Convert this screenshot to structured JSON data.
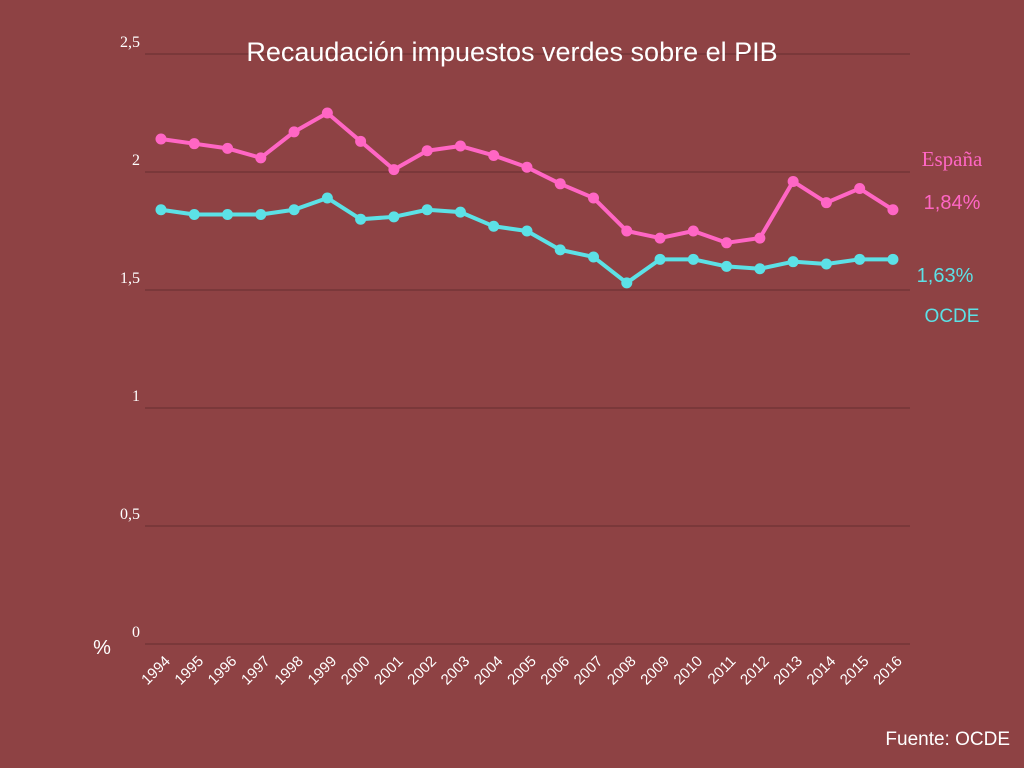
{
  "source": "Fuente: OCDE",
  "chart_data": {
    "type": "line",
    "title": "Recaudación impuestos verdes sobre el PIB",
    "ylabel": "%",
    "xlabel": "",
    "ylim": [
      0,
      2.5
    ],
    "yticks": [
      {
        "value": 0,
        "label": "0"
      },
      {
        "value": 0.5,
        "label": "0,5"
      },
      {
        "value": 1,
        "label": "1"
      },
      {
        "value": 1.5,
        "label": "1,5"
      },
      {
        "value": 2,
        "label": "2"
      },
      {
        "value": 2.5,
        "label": "2,5"
      }
    ],
    "grid": true,
    "categories": [
      "1994",
      "1995",
      "1996",
      "1997",
      "1998",
      "1999",
      "2000",
      "2001",
      "2002",
      "2003",
      "2004",
      "2005",
      "2006",
      "2007",
      "2008",
      "2009",
      "2010",
      "2011",
      "2012",
      "2013",
      "2014",
      "2015",
      "2016"
    ],
    "series": [
      {
        "name": "España",
        "color": "#ff66c4",
        "end_label": "1,84%",
        "values": [
          2.14,
          2.12,
          2.1,
          2.06,
          2.17,
          2.25,
          2.13,
          2.01,
          2.09,
          2.11,
          2.07,
          2.02,
          1.95,
          1.89,
          1.75,
          1.72,
          1.75,
          1.7,
          1.72,
          1.96,
          1.87,
          1.93,
          1.84
        ]
      },
      {
        "name": "OCDE",
        "color": "#5ce1e6",
        "end_label": "1,63%",
        "values": [
          1.84,
          1.82,
          1.82,
          1.82,
          1.84,
          1.89,
          1.8,
          1.81,
          1.84,
          1.83,
          1.77,
          1.75,
          1.67,
          1.64,
          1.53,
          1.63,
          1.63,
          1.6,
          1.59,
          1.62,
          1.61,
          1.63,
          1.63
        ]
      }
    ]
  }
}
